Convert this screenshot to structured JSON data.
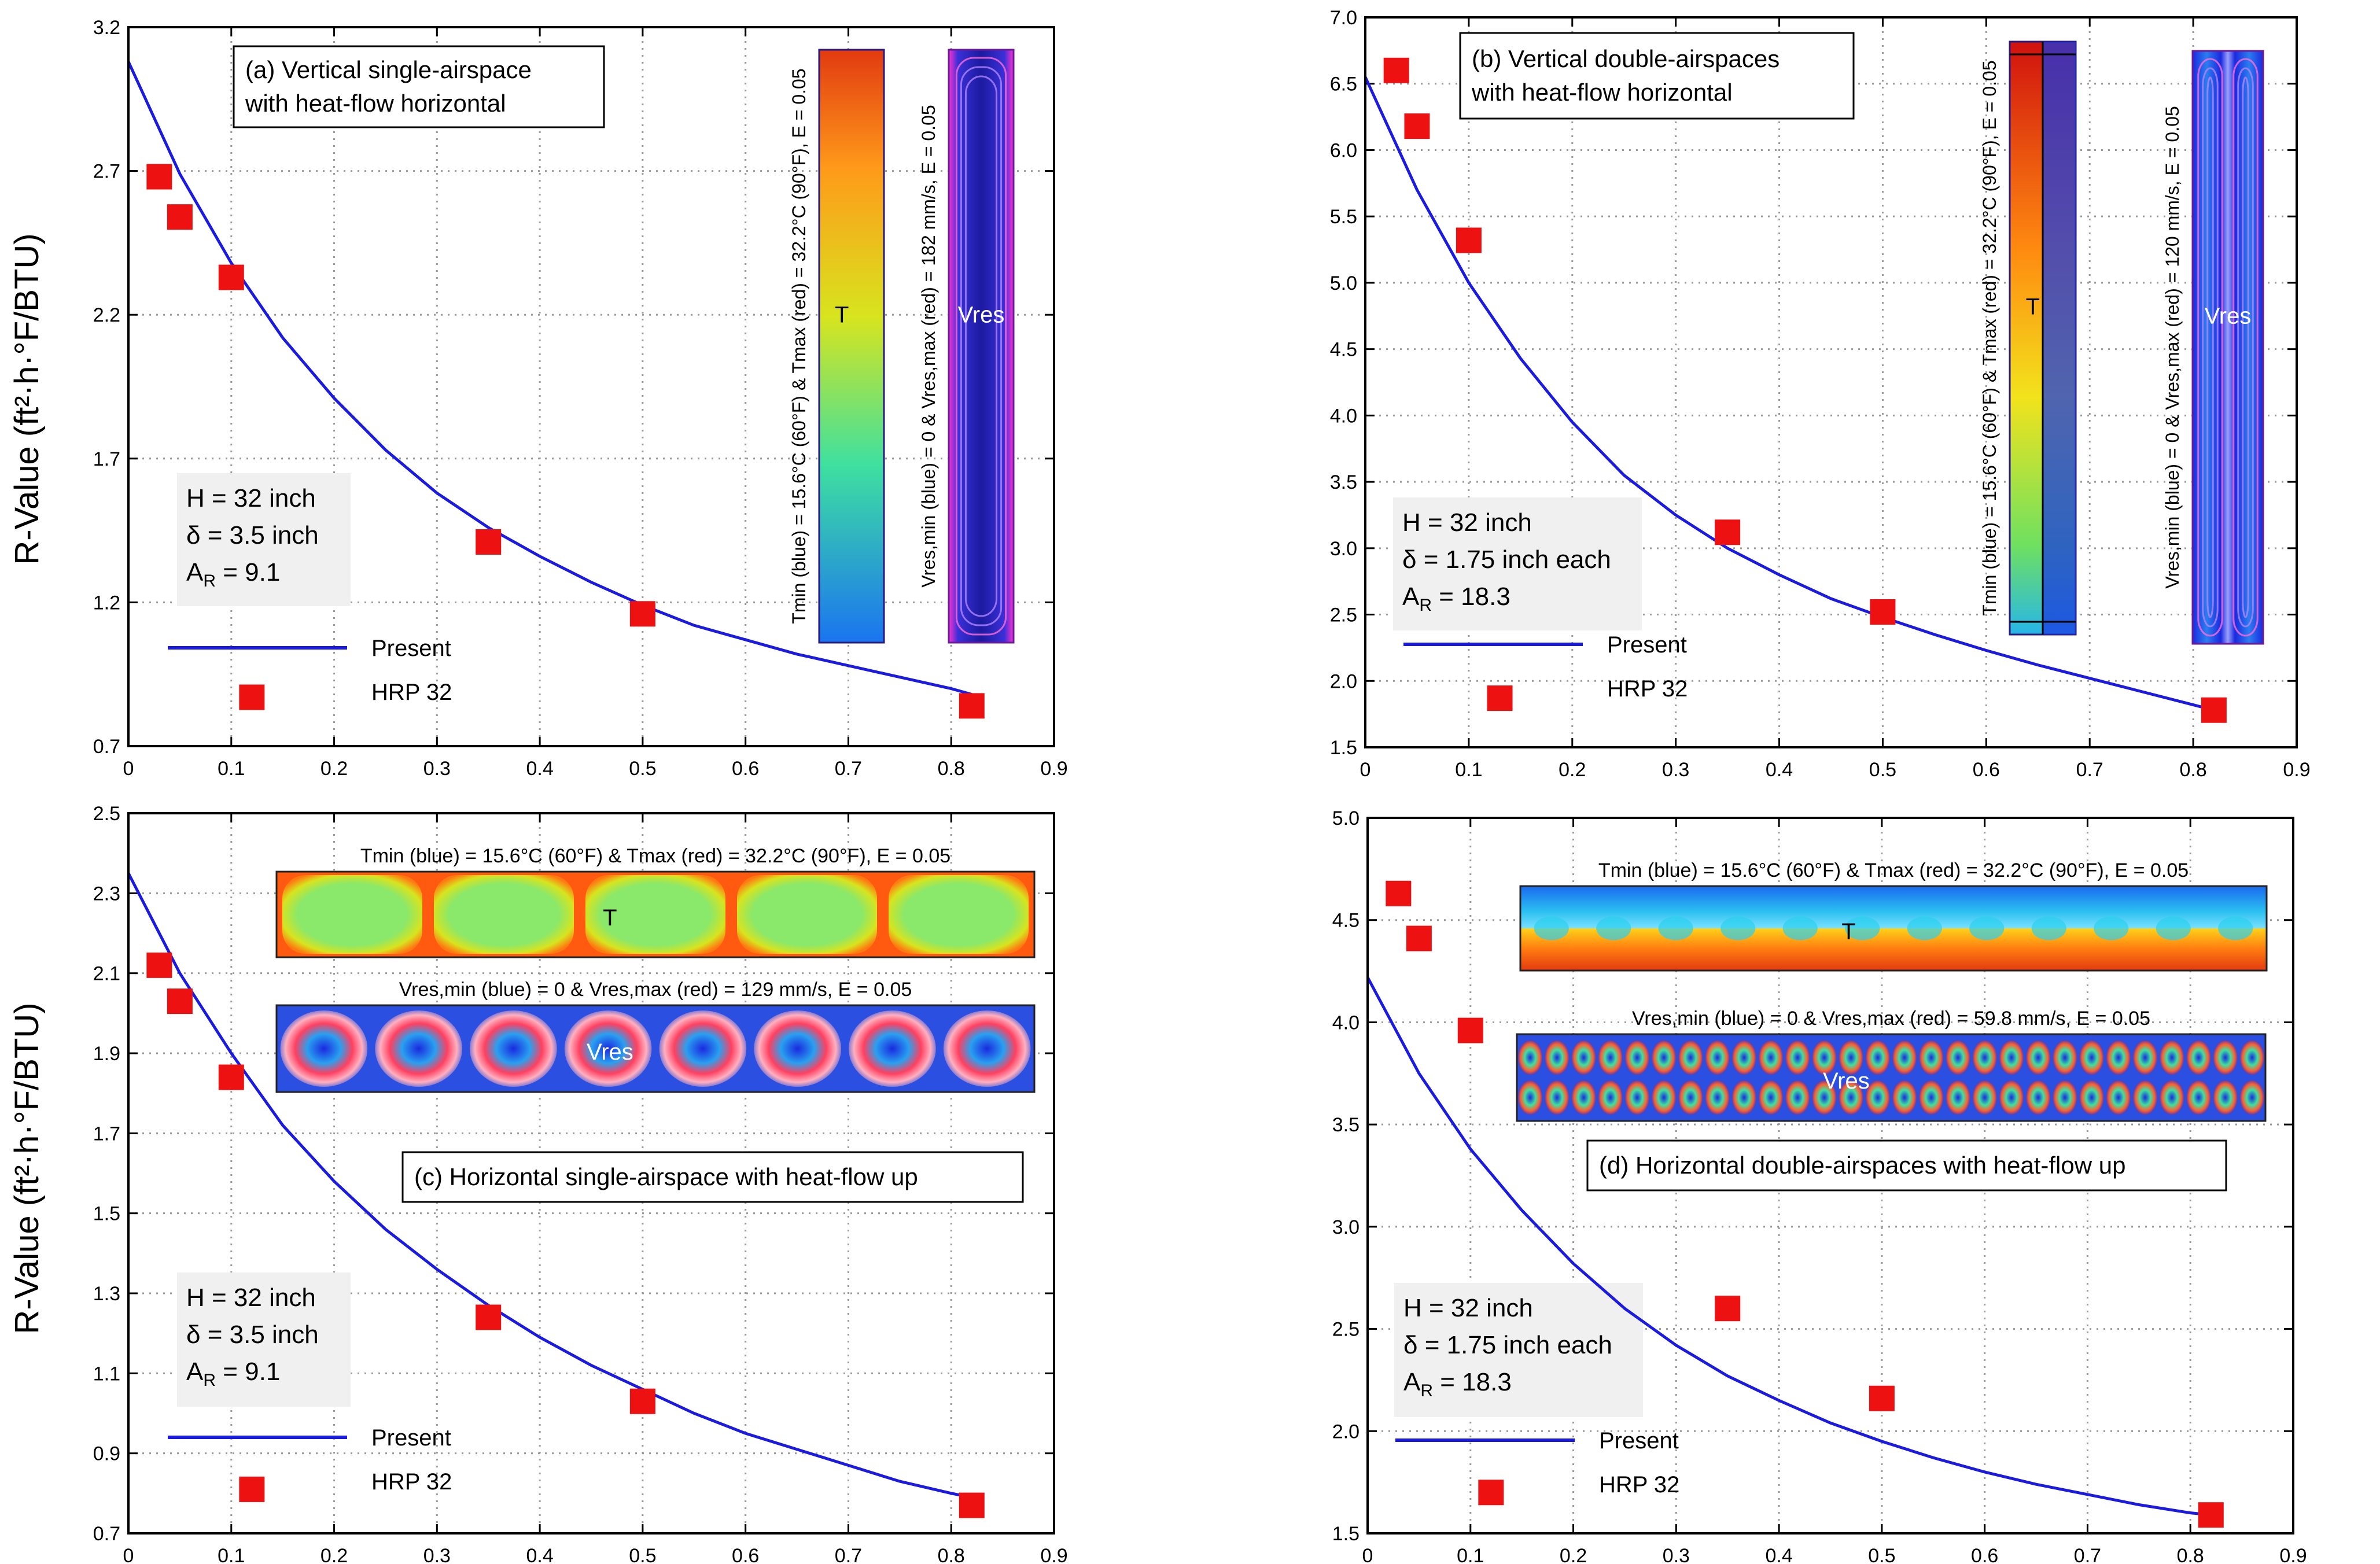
{
  "y_axis_label": "R-Value (ft²·h·°F/BTU)",
  "colors": {
    "present_line": "#1a1ae0",
    "hrp_marker": "#ee1111",
    "panel_border": "#000000",
    "grid": "#9a9a9a",
    "box_fill": "#f0f0f0"
  },
  "chart_data": [
    {
      "type": "line",
      "id": "a",
      "title": "(a) Vertical single-airspace with heat-flow horizontal",
      "title_lines": [
        "(a) Vertical single-airspace",
        "with heat-flow horizontal"
      ],
      "xlabel": "",
      "ylabel": "R-Value (ft²·h·°F/BTU)",
      "xlim": [
        0,
        0.9
      ],
      "ylim": [
        0.7,
        3.2
      ],
      "xticks": [
        0,
        0.1,
        0.2,
        0.3,
        0.4,
        0.5,
        0.6,
        0.7,
        0.8,
        0.9
      ],
      "xtick_labels": [
        "0",
        "0.1",
        "0.2",
        "0.3",
        "0.4",
        "0.5",
        "0.6",
        "0.7",
        "0.8",
        "0.9"
      ],
      "yticks": [
        0.7,
        1.2,
        1.7,
        2.2,
        2.7,
        3.2
      ],
      "ytick_labels": [
        "0.7",
        "1.2",
        "1.7",
        "2.2",
        "2.7",
        "3.2"
      ],
      "grid": true,
      "info_lines": [
        "H = 32 inch",
        "δ = 3.5 inch",
        "AR = 9.1"
      ],
      "legend": [
        "Present",
        "HRP 32"
      ],
      "series": [
        {
          "name": "Present",
          "style": "line",
          "x": [
            0,
            0.05,
            0.1,
            0.15,
            0.2,
            0.25,
            0.3,
            0.35,
            0.4,
            0.45,
            0.5,
            0.55,
            0.6,
            0.65,
            0.7,
            0.75,
            0.8,
            0.82
          ],
          "y": [
            3.08,
            2.69,
            2.38,
            2.12,
            1.91,
            1.73,
            1.58,
            1.46,
            1.36,
            1.27,
            1.19,
            1.12,
            1.07,
            1.02,
            0.98,
            0.94,
            0.9,
            0.88
          ]
        },
        {
          "name": "HRP 32",
          "style": "square",
          "x": [
            0.03,
            0.05,
            0.1,
            0.12,
            0.35,
            0.5,
            0.82
          ],
          "y": [
            2.68,
            2.54,
            2.33,
            0.87,
            1.41,
            1.16,
            0.84
          ]
        }
      ],
      "insets": [
        {
          "kind": "vcontour",
          "field": "temperature",
          "label": "T",
          "caption": "Tmin (blue) = 15.6°C (60°F) & Tmax (red) = 32.2°C (90°F), E = 0.05"
        },
        {
          "kind": "vcontour",
          "field": "velocity",
          "label": "Vres",
          "caption": "Vres,min (blue) = 0 & Vres,max (red) = 182 mm/s, E = 0.05"
        }
      ]
    },
    {
      "type": "line",
      "id": "b",
      "title": "(b) Vertical double-airspaces with heat-flow horizontal",
      "title_lines": [
        "(b) Vertical double-airspaces",
        "with heat-flow horizontal"
      ],
      "xlabel": "",
      "ylabel": "",
      "xlim": [
        0,
        0.9
      ],
      "ylim": [
        1.5,
        7.0
      ],
      "xticks": [
        0,
        0.1,
        0.2,
        0.3,
        0.4,
        0.5,
        0.6,
        0.7,
        0.8,
        0.9
      ],
      "xtick_labels": [
        "0",
        "0.1",
        "0.2",
        "0.3",
        "0.4",
        "0.5",
        "0.6",
        "0.7",
        "0.8",
        "0.9"
      ],
      "yticks": [
        1.5,
        2.0,
        2.5,
        3.0,
        3.5,
        4.0,
        4.5,
        5.0,
        5.5,
        6.0,
        6.5,
        7.0
      ],
      "ytick_labels": [
        "1.5",
        "2.0",
        "2.5",
        "3.0",
        "3.5",
        "4.0",
        "4.5",
        "5.0",
        "5.5",
        "6.0",
        "6.5",
        "7.0"
      ],
      "grid": true,
      "info_lines": [
        "H = 32 inch",
        "δ = 1.75 inch each",
        "AR = 18.3"
      ],
      "legend": [
        "Present",
        "HRP 32"
      ],
      "series": [
        {
          "name": "Present",
          "style": "line",
          "x": [
            0,
            0.05,
            0.1,
            0.15,
            0.2,
            0.25,
            0.3,
            0.35,
            0.4,
            0.45,
            0.5,
            0.55,
            0.6,
            0.65,
            0.7,
            0.75,
            0.8,
            0.82
          ],
          "y": [
            6.55,
            5.7,
            5.0,
            4.43,
            3.95,
            3.55,
            3.25,
            3.0,
            2.8,
            2.62,
            2.48,
            2.35,
            2.23,
            2.12,
            2.02,
            1.92,
            1.82,
            1.78
          ]
        },
        {
          "name": "HRP 32",
          "style": "square",
          "x": [
            0.03,
            0.05,
            0.1,
            0.13,
            0.35,
            0.5,
            0.82
          ],
          "y": [
            6.6,
            6.18,
            5.32,
            1.87,
            3.12,
            2.52,
            1.78
          ]
        }
      ],
      "insets": [
        {
          "kind": "vcontour",
          "field": "temperature",
          "label": "T",
          "caption": "Tmin (blue) = 15.6°C (60°F) & Tmax (red) = 32.2°C (90°F), E = 0.05"
        },
        {
          "kind": "vcontour",
          "field": "velocity",
          "label": "Vres",
          "caption": "Vres,min (blue) = 0 & Vres,max (red) = 120 mm/s, E = 0.05"
        }
      ]
    },
    {
      "type": "line",
      "id": "c",
      "title": "(c) Horizontal single-airspace with heat-flow up",
      "title_lines": [
        "(c) Horizontal single-airspace with heat-flow up"
      ],
      "xlabel": "",
      "ylabel": "R-Value (ft²·h·°F/BTU)",
      "xlim": [
        0,
        0.9
      ],
      "ylim": [
        0.7,
        2.5
      ],
      "xticks": [
        0,
        0.1,
        0.2,
        0.3,
        0.4,
        0.5,
        0.6,
        0.7,
        0.8,
        0.9
      ],
      "xtick_labels": [
        "0",
        "0.1",
        "0.2",
        "0.3",
        "0.4",
        "0.5",
        "0.6",
        "0.7",
        "0.8",
        "0.9"
      ],
      "yticks": [
        0.7,
        0.9,
        1.1,
        1.3,
        1.5,
        1.7,
        1.9,
        2.1,
        2.3,
        2.5
      ],
      "ytick_labels": [
        "0.7",
        "0.9",
        "1.1",
        "1.3",
        "1.5",
        "1.7",
        "1.9",
        "2.1",
        "2.3",
        "2.5"
      ],
      "grid": true,
      "info_lines": [
        "H = 32 inch",
        "δ = 3.5 inch",
        "AR = 9.1"
      ],
      "legend": [
        "Present",
        "HRP 32"
      ],
      "series": [
        {
          "name": "Present",
          "style": "line",
          "x": [
            0,
            0.05,
            0.1,
            0.15,
            0.2,
            0.25,
            0.3,
            0.35,
            0.4,
            0.45,
            0.5,
            0.55,
            0.6,
            0.65,
            0.7,
            0.75,
            0.8,
            0.82
          ],
          "y": [
            2.35,
            2.1,
            1.9,
            1.72,
            1.58,
            1.46,
            1.36,
            1.27,
            1.19,
            1.12,
            1.06,
            1.0,
            0.95,
            0.91,
            0.87,
            0.83,
            0.8,
            0.79
          ]
        },
        {
          "name": "HRP 32",
          "style": "square",
          "x": [
            0.03,
            0.05,
            0.1,
            0.12,
            0.35,
            0.5,
            0.82
          ],
          "y": [
            2.12,
            2.03,
            1.84,
            0.81,
            1.24,
            1.03,
            0.77
          ]
        }
      ],
      "insets": [
        {
          "kind": "hcontour",
          "field": "temperature",
          "label": "T",
          "caption": "Tmin (blue) = 15.6°C (60°F) & Tmax (red) = 32.2°C (90°F), E = 0.05"
        },
        {
          "kind": "hcontour",
          "field": "velocity",
          "label": "Vres",
          "caption": "Vres,min (blue) = 0 & Vres,max (red) = 129 mm/s, E = 0.05"
        }
      ]
    },
    {
      "type": "line",
      "id": "d",
      "title": "(d) Horizontal double-airspaces with heat-flow up",
      "title_lines": [
        "(d) Horizontal double-airspaces with heat-flow up"
      ],
      "xlabel": "",
      "ylabel": "",
      "xlim": [
        0,
        0.9
      ],
      "ylim": [
        1.5,
        5.0
      ],
      "xticks": [
        0,
        0.1,
        0.2,
        0.3,
        0.4,
        0.5,
        0.6,
        0.7,
        0.8,
        0.9
      ],
      "xtick_labels": [
        "0",
        "0.1",
        "0.2",
        "0.3",
        "0.4",
        "0.5",
        "0.6",
        "0.7",
        "0.8",
        "0.9"
      ],
      "yticks": [
        1.5,
        2.0,
        2.5,
        3.0,
        3.5,
        4.0,
        4.5,
        5.0
      ],
      "ytick_labels": [
        "1.5",
        "2.0",
        "2.5",
        "3.0",
        "3.5",
        "4.0",
        "4.5",
        "5.0"
      ],
      "grid": true,
      "info_lines": [
        "H = 32 inch",
        "δ = 1.75 inch each",
        "AR = 18.3"
      ],
      "legend": [
        "Present",
        "HRP 32"
      ],
      "series": [
        {
          "name": "Present",
          "style": "line",
          "x": [
            0,
            0.05,
            0.1,
            0.15,
            0.2,
            0.25,
            0.3,
            0.35,
            0.4,
            0.45,
            0.5,
            0.55,
            0.6,
            0.65,
            0.7,
            0.75,
            0.8,
            0.82
          ],
          "y": [
            4.22,
            3.75,
            3.38,
            3.08,
            2.82,
            2.6,
            2.42,
            2.27,
            2.15,
            2.04,
            1.95,
            1.87,
            1.8,
            1.74,
            1.69,
            1.64,
            1.6,
            1.59
          ]
        },
        {
          "name": "HRP 32",
          "style": "square",
          "x": [
            0.03,
            0.05,
            0.1,
            0.12,
            0.35,
            0.5,
            0.82
          ],
          "y": [
            4.63,
            4.41,
            3.96,
            1.7,
            2.6,
            2.16,
            1.59
          ]
        }
      ],
      "insets": [
        {
          "kind": "hcontour",
          "field": "temperature",
          "label": "T",
          "caption": "Tmin (blue) = 15.6°C (60°F) & Tmax (red) = 32.2°C (90°F), E = 0.05"
        },
        {
          "kind": "hcontour",
          "field": "velocity",
          "label": "Vres",
          "caption": "Vres,min (blue) = 0 & Vres,max (red) = 59.8 mm/s, E = 0.05"
        }
      ]
    }
  ]
}
